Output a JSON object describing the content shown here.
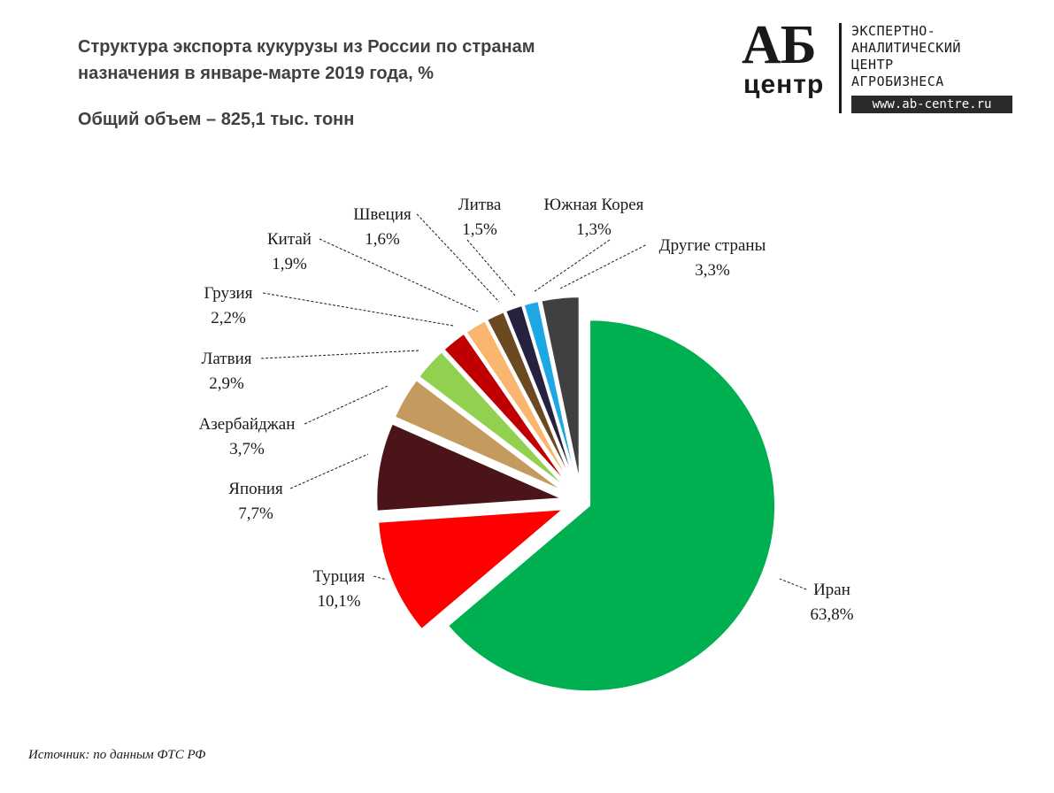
{
  "header": {
    "title": "Структура экспорта кукурузы из России по странам назначения в январе-марте 2019 года, %",
    "subtitle": "Общий объем – 825,1 тыс. тонн"
  },
  "logo": {
    "mark_top": "АБ",
    "mark_bottom": "центр",
    "lines": [
      "ЭКСПЕРТНО-",
      "АНАЛИТИЧЕСКИЙ",
      "ЦЕНТР",
      "АГРОБИЗНЕСА"
    ],
    "url": "www.ab-centre.ru"
  },
  "source": "Источник: по данным ФТС РФ",
  "chart_data": {
    "type": "pie",
    "title": "Структура экспорта кукурузы из России по странам назначения в январе-марте 2019 года, %",
    "unit": "%",
    "slices": [
      {
        "name": "Иран",
        "value": 63.8,
        "label": "63,8%",
        "color": "#00b050",
        "exploded": true
      },
      {
        "name": "Турция",
        "value": 10.1,
        "label": "10,1%",
        "color": "#ff0000"
      },
      {
        "name": "Япония",
        "value": 7.7,
        "label": "7,7%",
        "color": "#4a1418"
      },
      {
        "name": "Азербайджан",
        "value": 3.7,
        "label": "3,7%",
        "color": "#c49a5e"
      },
      {
        "name": "Латвия",
        "value": 2.9,
        "label": "2,9%",
        "color": "#92d050"
      },
      {
        "name": "Грузия",
        "value": 2.2,
        "label": "2,2%",
        "color": "#c00000"
      },
      {
        "name": "Китай",
        "value": 1.9,
        "label": "1,9%",
        "color": "#fab56e"
      },
      {
        "name": "Швеция",
        "value": 1.6,
        "label": "1,6%",
        "color": "#6b4a22"
      },
      {
        "name": "Литва",
        "value": 1.5,
        "label": "1,5%",
        "color": "#25213f"
      },
      {
        "name": "Южная Корея",
        "value": 1.3,
        "label": "1,3%",
        "color": "#1da7e5"
      },
      {
        "name": "Другие страны",
        "value": 3.3,
        "label": "3,3%",
        "color": "#404040"
      }
    ]
  }
}
